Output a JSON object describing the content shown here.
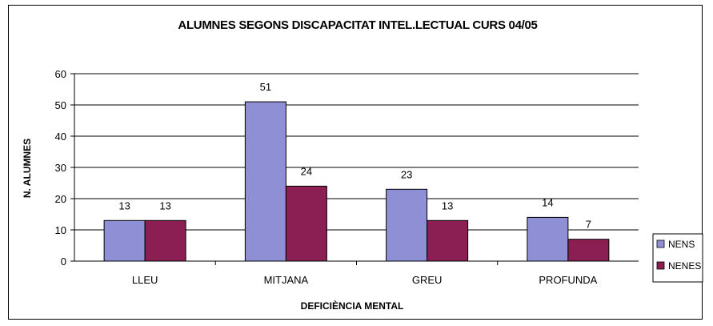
{
  "chart_data": {
    "type": "bar",
    "title": "ALUMNES SEGONS DISCAPACITAT INTEL.LECTUAL CURS 04/05",
    "xlabel": "DEFICIÈNCIA MENTAL",
    "ylabel": "N. ALUMNES",
    "categories": [
      "LLEU",
      "MITJANA",
      "GREU",
      "PROFUNDA"
    ],
    "series": [
      {
        "name": "NENS",
        "values": [
          13,
          51,
          23,
          14
        ],
        "color": "#8f8fd6"
      },
      {
        "name": "NENES",
        "values": [
          13,
          24,
          13,
          7
        ],
        "color": "#8b1e52"
      }
    ],
    "ylim": [
      0,
      60
    ],
    "yticks": [
      0,
      10,
      20,
      30,
      40,
      50,
      60
    ],
    "grid": true,
    "legend": "right",
    "data_labels": true
  }
}
